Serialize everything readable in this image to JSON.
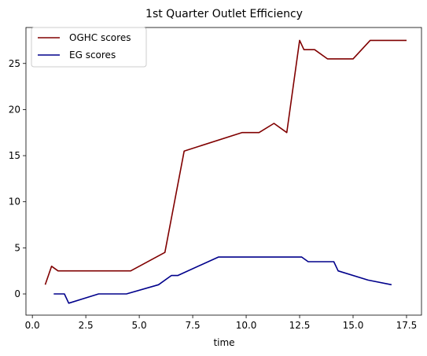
{
  "chart_data": {
    "type": "line",
    "title": "1st Quarter Outlet Efficiency",
    "xlabel": "time",
    "ylabel": "",
    "xlim": [
      -0.3,
      18.2
    ],
    "ylim": [
      -2.3,
      28.9
    ],
    "xticks": [
      0.0,
      2.5,
      5.0,
      7.5,
      10.0,
      12.5,
      15.0,
      17.5
    ],
    "xtick_labels": [
      "0.0",
      "2.5",
      "5.0",
      "7.5",
      "10.0",
      "12.5",
      "15.0",
      "17.5"
    ],
    "yticks": [
      0,
      5,
      10,
      15,
      20,
      25
    ],
    "ytick_labels": [
      "0",
      "5",
      "10",
      "15",
      "20",
      "25"
    ],
    "grid": false,
    "legend_position": "top-left",
    "series": [
      {
        "name": "OGHC scores",
        "color": "#800000",
        "x": [
          0.6,
          0.9,
          1.2,
          4.6,
          6.2,
          7.1,
          9.8,
          10.6,
          11.3,
          11.9,
          12.5,
          12.7,
          13.2,
          13.8,
          15.0,
          15.8,
          17.5
        ],
        "y": [
          1.0,
          3.0,
          2.5,
          2.5,
          4.5,
          15.5,
          17.5,
          17.5,
          18.5,
          17.5,
          27.5,
          26.5,
          26.5,
          25.5,
          25.5,
          27.5,
          27.5
        ]
      },
      {
        "name": "EG scores",
        "color": "#00008b",
        "x": [
          1.0,
          1.5,
          1.7,
          3.1,
          4.4,
          5.9,
          6.5,
          6.8,
          8.7,
          12.6,
          12.9,
          14.1,
          14.3,
          15.7,
          16.8
        ],
        "y": [
          0.0,
          0.0,
          -1.0,
          0.0,
          0.0,
          1.0,
          2.0,
          2.0,
          4.0,
          4.0,
          3.5,
          3.5,
          2.5,
          1.5,
          1.0
        ]
      }
    ]
  }
}
